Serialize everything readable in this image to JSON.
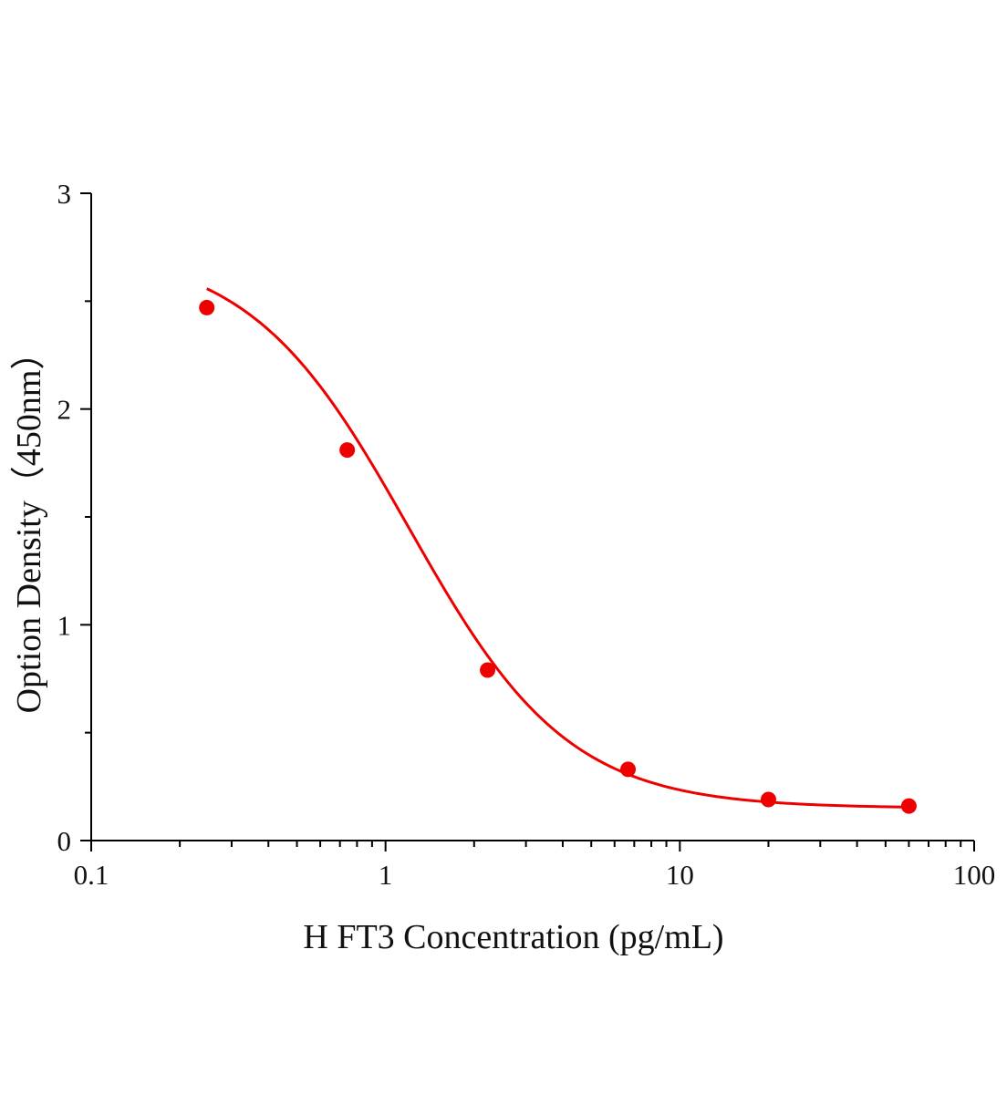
{
  "chart_data": {
    "type": "scatter",
    "xlabel": "H FT3 Concentration (pg/mL)",
    "ylabel": "Option Density（450nm）",
    "x_scale": "log",
    "xlim": [
      0.1,
      100
    ],
    "ylim": [
      0,
      3
    ],
    "x_ticks": [
      0.1,
      1,
      10,
      100
    ],
    "x_tick_labels": [
      "0.1",
      "1",
      "10",
      "100"
    ],
    "y_ticks": [
      0,
      1,
      2,
      3
    ],
    "y_tick_labels": [
      "0",
      "1",
      "2",
      "3"
    ],
    "y_minor_ticks": [
      0.5,
      1.5,
      2.5
    ],
    "grid": false,
    "legend": "none",
    "series": [
      {
        "color": "#ee0000",
        "x": [
          0.247,
          0.741,
          2.222,
          6.667,
          20,
          60
        ],
        "y": [
          2.47,
          1.81,
          0.79,
          0.33,
          0.19,
          0.16
        ]
      }
    ],
    "fit_curve": {
      "model": "4PL",
      "A": 2.75,
      "D": 0.15,
      "C": 1.2,
      "B": 1.6,
      "color": "#ee0000"
    }
  }
}
